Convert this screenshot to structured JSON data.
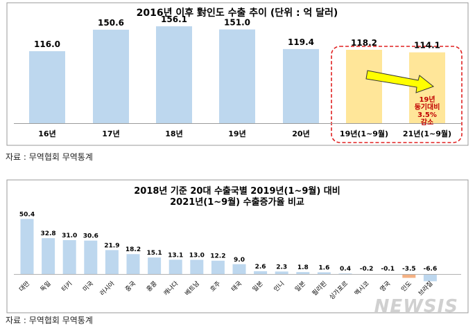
{
  "chart_data": [
    {
      "type": "bar",
      "title": "2016년 이후 對인도 수출 추이 (단위 : 억 달러)",
      "categories": [
        "16년",
        "17년",
        "18년",
        "19년",
        "20년",
        "19년(1~9월)",
        "21년(1~9월)"
      ],
      "values": [
        116.0,
        150.6,
        156.1,
        151.0,
        119.4,
        118.2,
        114.1
      ],
      "value_labels": [
        "116.0",
        "150.6",
        "156.1",
        "151.0",
        "119.4",
        "118.2",
        "114.1"
      ],
      "ylim": [
        0,
        165
      ],
      "grid": false,
      "colors": {
        "bar": "#bdd7ee",
        "highlight_bar": "#ffe699",
        "box": "#e02020",
        "arrow": "#ffff00",
        "note": "#c00000"
      },
      "highlight_indices": [
        5,
        6
      ],
      "annotation_lines": [
        "19년",
        "동기대비",
        "3.5%",
        "감소"
      ]
    },
    {
      "type": "bar",
      "title_lines": [
        "2018년 기준 20대 수출국별 2019년(1~9월) 대비",
        "2021년(1~9월) 수출증가율 비교"
      ],
      "categories": [
        "대만",
        "독일",
        "터키",
        "미국",
        "러시아",
        "중국",
        "홍콩",
        "캐나다",
        "베트남",
        "호주",
        "태국",
        "일본",
        "인니",
        "일본",
        "필리핀",
        "싱가포르",
        "멕시코",
        "영국",
        "인도",
        "브라질"
      ],
      "values": [
        50.4,
        32.8,
        31.0,
        30.6,
        21.9,
        18.2,
        15.1,
        13.1,
        13.0,
        12.2,
        9.0,
        2.6,
        2.3,
        1.8,
        1.6,
        0.4,
        -0.2,
        -0.1,
        -3.5,
        -6.6
      ],
      "value_labels": [
        "50.4",
        "32.8",
        "31.0",
        "30.6",
        "21.9",
        "18.2",
        "15.1",
        "13.1",
        "13.0",
        "12.2",
        "9.0",
        "2.6",
        "2.3",
        "1.8",
        "1.6",
        "0.4",
        "-0.2",
        "-0.1",
        "-3.5",
        "-6.6"
      ],
      "ylim": [
        -8,
        55
      ],
      "grid": false,
      "colors": {
        "bar": "#bdd7ee",
        "highlight_bar": "#f4b183"
      },
      "highlight_indices": [
        18
      ]
    }
  ],
  "sources": [
    "자료 : 무역협회 무역통계",
    "자료 : 무역협회 무역통계"
  ],
  "watermark": "NEWSIS"
}
